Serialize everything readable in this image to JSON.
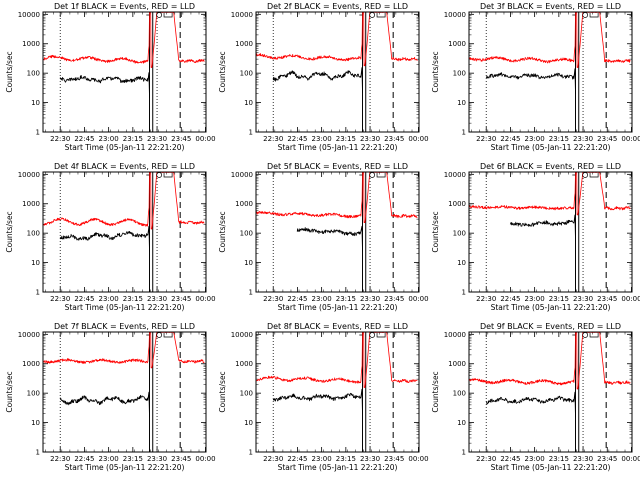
{
  "panel_titles": [
    "Det 1f BLACK = Events, RED = LLD",
    "Det 2f BLACK = Events, RED = LLD",
    "Det 3f BLACK = Events, RED = LLD",
    "Det 4f BLACK = Events, RED = LLD",
    "Det 5f BLACK = Events, RED = LLD",
    "Det 6f BLACK = Events, RED = LLD",
    "Det 7f BLACK = Events, RED = LLD",
    "Det 8f BLACK = Events, RED = LLD",
    "Det 9f BLACK = Events, RED = LLD"
  ],
  "xlabel": "Start Time (05-Jan-11 22:21:20)",
  "ylabel": "Counts/sec",
  "colors": {
    "events": "#000000",
    "lld": "#ff0000"
  },
  "chart_data": [
    {
      "type": "line",
      "title": "Det 1f BLACK = Events, RED = LLD",
      "xlabel": "Start Time (05-Jan-11 22:21:20)",
      "ylabel": "Counts/sec",
      "x_range_min": [
        -2,
        99
      ],
      "x_ticks_min": [
        8.67,
        23.67,
        38.67,
        53.67,
        68.67,
        83.67,
        98.67
      ],
      "x_tick_labels": [
        "22:30",
        "22:45",
        "23:00",
        "23:15",
        "23:30",
        "23:45",
        "00:00"
      ],
      "y_scale": "log",
      "ylim": [
        1,
        12000
      ],
      "y_tick_labels": [
        "1",
        "10",
        "100",
        "1000",
        "10000"
      ],
      "vlines_dotted_min": [
        8.67,
        68.67
      ],
      "vlines_solid_min": [
        64,
        66
      ],
      "vlines_dashed_min": [
        83
      ],
      "series": [
        {
          "name": "BLACK = Events",
          "x_start_min": 8.67,
          "x_end_min": 63,
          "level_start": 65,
          "level_end": 58,
          "wave_amp": 0.05
        },
        {
          "name": "RED = LLD",
          "x_start_min": -2,
          "x_end_min": 98,
          "level_start": 330,
          "level_end": 260,
          "wave_amp": 0.06,
          "saturation_start_min": 68.5,
          "saturation_end_min": 79
        }
      ]
    },
    {
      "type": "line",
      "title": "Det 2f BLACK = Events, RED = LLD",
      "xlabel": "Start Time (05-Jan-11 22:21:20)",
      "ylabel": "Counts/sec",
      "x_range_min": [
        -2,
        99
      ],
      "x_ticks_min": [
        8.67,
        23.67,
        38.67,
        53.67,
        68.67,
        83.67,
        98.67
      ],
      "x_tick_labels": [
        "22:30",
        "22:45",
        "23:00",
        "23:15",
        "23:30",
        "23:45",
        "00:00"
      ],
      "y_scale": "log",
      "ylim": [
        1,
        12000
      ],
      "y_tick_labels": [
        "1",
        "10",
        "100",
        "1000",
        "10000"
      ],
      "vlines_dotted_min": [
        8.67,
        68.67
      ],
      "vlines_solid_min": [
        64,
        66
      ],
      "vlines_dashed_min": [
        83
      ],
      "series": [
        {
          "name": "BLACK = Events",
          "x_start_min": 8.67,
          "x_end_min": 63,
          "level_start": 80,
          "level_end": 85,
          "wave_amp": 0.08
        },
        {
          "name": "RED = LLD",
          "x_start_min": -2,
          "x_end_min": 98,
          "level_start": 380,
          "level_end": 300,
          "wave_amp": 0.05,
          "saturation_start_min": 68.5,
          "saturation_end_min": 79
        }
      ]
    },
    {
      "type": "line",
      "title": "Det 3f BLACK = Events, RED = LLD",
      "xlabel": "Start Time (05-Jan-11 22:21:20)",
      "ylabel": "Counts/sec",
      "x_range_min": [
        -2,
        99
      ],
      "x_ticks_min": [
        8.67,
        23.67,
        38.67,
        53.67,
        68.67,
        83.67,
        98.67
      ],
      "x_tick_labels": [
        "22:30",
        "22:45",
        "23:00",
        "23:15",
        "23:30",
        "23:45",
        "00:00"
      ],
      "y_scale": "log",
      "ylim": [
        1,
        12000
      ],
      "y_tick_labels": [
        "1",
        "10",
        "100",
        "1000",
        "10000"
      ],
      "vlines_dotted_min": [
        8.67,
        68.67
      ],
      "vlines_solid_min": [
        64,
        66
      ],
      "vlines_dashed_min": [
        83
      ],
      "series": [
        {
          "name": "BLACK = Events",
          "x_start_min": 8.67,
          "x_end_min": 63,
          "level_start": 80,
          "level_end": 78,
          "wave_amp": 0.04
        },
        {
          "name": "RED = LLD",
          "x_start_min": -2,
          "x_end_min": 98,
          "level_start": 320,
          "level_end": 260,
          "wave_amp": 0.05,
          "saturation_start_min": 68.5,
          "saturation_end_min": 79
        }
      ]
    },
    {
      "type": "line",
      "title": "Det 4f BLACK = Events, RED = LLD",
      "xlabel": "Start Time (05-Jan-11 22:21:20)",
      "ylabel": "Counts/sec",
      "x_range_min": [
        -2,
        99
      ],
      "x_ticks_min": [
        8.67,
        23.67,
        38.67,
        53.67,
        68.67,
        83.67,
        98.67
      ],
      "x_tick_labels": [
        "22:30",
        "22:45",
        "23:00",
        "23:15",
        "23:30",
        "23:45",
        "00:00"
      ],
      "y_scale": "log",
      "ylim": [
        1,
        12000
      ],
      "y_tick_labels": [
        "1",
        "10",
        "100",
        "1000",
        "10000"
      ],
      "vlines_dotted_min": [
        8.67,
        68.67
      ],
      "vlines_solid_min": [
        64,
        66
      ],
      "vlines_dashed_min": [
        83
      ],
      "series": [
        {
          "name": "BLACK = Events",
          "x_start_min": 8.67,
          "x_end_min": 63,
          "level_start": 65,
          "level_end": 95,
          "wave_amp": 0.06
        },
        {
          "name": "RED = LLD",
          "x_start_min": -2,
          "x_end_min": 98,
          "level_start": 250,
          "level_end": 230,
          "wave_amp": 0.09,
          "saturation_start_min": 68.5,
          "saturation_end_min": 79
        }
      ]
    },
    {
      "type": "line",
      "title": "Det 5f BLACK = Events, RED = LLD",
      "xlabel": "Start Time (05-Jan-11 22:21:20)",
      "ylabel": "Counts/sec",
      "x_range_min": [
        -2,
        99
      ],
      "x_ticks_min": [
        8.67,
        23.67,
        38.67,
        53.67,
        68.67,
        83.67,
        98.67
      ],
      "x_tick_labels": [
        "22:30",
        "22:45",
        "23:00",
        "23:15",
        "23:30",
        "23:45",
        "00:00"
      ],
      "y_scale": "log",
      "ylim": [
        1,
        12000
      ],
      "y_tick_labels": [
        "1",
        "10",
        "100",
        "1000",
        "10000"
      ],
      "vlines_dotted_min": [
        8.67,
        68.67
      ],
      "vlines_solid_min": [
        64,
        66
      ],
      "vlines_dashed_min": [
        83
      ],
      "series": [
        {
          "name": "BLACK = Events",
          "x_start_min": 23.5,
          "x_end_min": 63,
          "level_start": 130,
          "level_end": 95,
          "wave_amp": 0.03
        },
        {
          "name": "RED = LLD",
          "x_start_min": -2,
          "x_end_min": 98,
          "level_start": 480,
          "level_end": 380,
          "wave_amp": 0.03,
          "saturation_start_min": 68.5,
          "saturation_end_min": 79
        }
      ]
    },
    {
      "type": "line",
      "title": "Det 6f BLACK = Events, RED = LLD",
      "xlabel": "Start Time (05-Jan-11 22:21:20)",
      "ylabel": "Counts/sec",
      "x_range_min": [
        -2,
        99
      ],
      "x_ticks_min": [
        8.67,
        23.67,
        38.67,
        53.67,
        68.67,
        83.67,
        98.67
      ],
      "x_tick_labels": [
        "22:30",
        "22:45",
        "23:00",
        "23:15",
        "23:30",
        "23:45",
        "00:00"
      ],
      "y_scale": "log",
      "ylim": [
        1,
        12000
      ],
      "y_tick_labels": [
        "1",
        "10",
        "100",
        "1000",
        "10000"
      ],
      "vlines_dotted_min": [
        8.67,
        68.67
      ],
      "vlines_solid_min": [
        64,
        66
      ],
      "vlines_dashed_min": [
        83
      ],
      "series": [
        {
          "name": "BLACK = Events",
          "x_start_min": 23.5,
          "x_end_min": 63,
          "level_start": 190,
          "level_end": 230,
          "wave_amp": 0.03
        },
        {
          "name": "RED = LLD",
          "x_start_min": -2,
          "x_end_min": 98,
          "level_start": 780,
          "level_end": 700,
          "wave_amp": 0.02,
          "saturation_start_min": 68.5,
          "saturation_end_min": 79
        }
      ]
    },
    {
      "type": "line",
      "title": "Det 7f BLACK = Events, RED = LLD",
      "xlabel": "Start Time (05-Jan-11 22:21:20)",
      "ylabel": "Counts/sec",
      "x_range_min": [
        -2,
        99
      ],
      "x_ticks_min": [
        8.67,
        23.67,
        38.67,
        53.67,
        68.67,
        83.67,
        98.67
      ],
      "x_tick_labels": [
        "22:30",
        "22:45",
        "23:00",
        "23:15",
        "23:30",
        "23:45",
        "00:00"
      ],
      "y_scale": "log",
      "ylim": [
        1,
        12000
      ],
      "y_tick_labels": [
        "1",
        "10",
        "100",
        "1000",
        "10000"
      ],
      "vlines_dotted_min": [
        8.67,
        68.67
      ],
      "vlines_solid_min": [
        64,
        66
      ],
      "vlines_dashed_min": [
        83
      ],
      "series": [
        {
          "name": "BLACK = Events",
          "x_start_min": 8.67,
          "x_end_min": 63,
          "level_start": 55,
          "level_end": 60,
          "wave_amp": 0.07
        },
        {
          "name": "RED = LLD",
          "x_start_min": -2,
          "x_end_min": 98,
          "level_start": 1250,
          "level_end": 1200,
          "wave_amp": 0.04,
          "saturation_start_min": 68.5,
          "saturation_end_min": 79
        }
      ]
    },
    {
      "type": "line",
      "title": "Det 8f BLACK = Events, RED = LLD",
      "xlabel": "Start Time (05-Jan-11 22:21:20)",
      "ylabel": "Counts/sec",
      "x_range_min": [
        -2,
        99
      ],
      "x_ticks_min": [
        8.67,
        23.67,
        38.67,
        53.67,
        68.67,
        83.67,
        98.67
      ],
      "x_tick_labels": [
        "22:30",
        "22:45",
        "23:00",
        "23:15",
        "23:30",
        "23:45",
        "00:00"
      ],
      "y_scale": "log",
      "ylim": [
        1,
        12000
      ],
      "y_tick_labels": [
        "1",
        "10",
        "100",
        "1000",
        "10000"
      ],
      "vlines_dotted_min": [
        8.67,
        68.67
      ],
      "vlines_solid_min": [
        64,
        66
      ],
      "vlines_dashed_min": [
        83
      ],
      "series": [
        {
          "name": "BLACK = Events",
          "x_start_min": 8.67,
          "x_end_min": 63,
          "level_start": 70,
          "level_end": 75,
          "wave_amp": 0.05
        },
        {
          "name": "RED = LLD",
          "x_start_min": -2,
          "x_end_min": 98,
          "level_start": 320,
          "level_end": 260,
          "wave_amp": 0.05,
          "saturation_start_min": 68.5,
          "saturation_end_min": 79
        }
      ]
    },
    {
      "type": "line",
      "title": "Det 9f BLACK = Events, RED = LLD",
      "xlabel": "Start Time (05-Jan-11 22:21:20)",
      "ylabel": "Counts/sec",
      "x_range_min": [
        -2,
        99
      ],
      "x_ticks_min": [
        8.67,
        23.67,
        38.67,
        53.67,
        68.67,
        83.67,
        98.67
      ],
      "x_tick_labels": [
        "22:30",
        "22:45",
        "23:00",
        "23:15",
        "23:30",
        "23:45",
        "00:00"
      ],
      "y_scale": "log",
      "ylim": [
        1,
        12000
      ],
      "y_tick_labels": [
        "1",
        "10",
        "100",
        "1000",
        "10000"
      ],
      "vlines_dotted_min": [
        8.67,
        68.67
      ],
      "vlines_solid_min": [
        64,
        66
      ],
      "vlines_dashed_min": [
        83
      ],
      "series": [
        {
          "name": "BLACK = Events",
          "x_start_min": 8.67,
          "x_end_min": 63,
          "level_start": 55,
          "level_end": 60,
          "wave_amp": 0.05
        },
        {
          "name": "RED = LLD",
          "x_start_min": -2,
          "x_end_min": 98,
          "level_start": 260,
          "level_end": 230,
          "wave_amp": 0.05,
          "saturation_start_min": 68.5,
          "saturation_end_min": 79
        }
      ]
    }
  ]
}
